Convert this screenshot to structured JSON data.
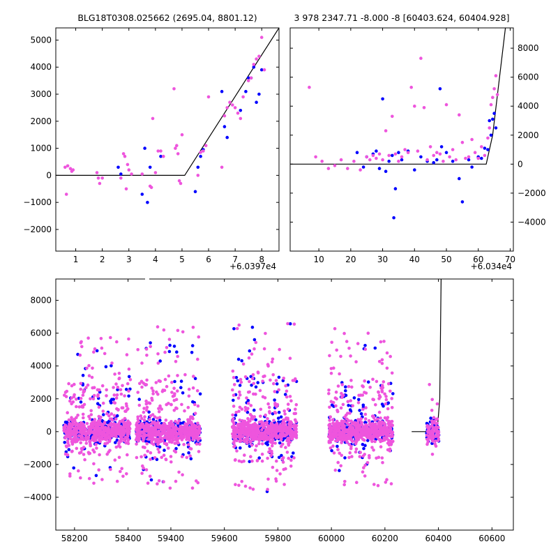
{
  "colors": {
    "blue": "#0000ff",
    "pink": "#ee55dd",
    "model": "#000000"
  },
  "chart_data": [
    {
      "type": "scatter",
      "title": "BLG18T0308.025662 (2695.04, 8801.12)",
      "xlim": [
        0.25,
        8.65
      ],
      "ylim": [
        -2800,
        5450
      ],
      "xticks": [
        1,
        2,
        3,
        4,
        5,
        6,
        7,
        8
      ],
      "xtick_labels": [
        "1",
        "2",
        "3",
        "4",
        "5",
        "6",
        "7",
        "8"
      ],
      "yticks": [
        -2000,
        -1000,
        0,
        1000,
        2000,
        3000,
        4000,
        5000
      ],
      "ytick_labels": [
        "−2000",
        "−1000",
        "0",
        "1000",
        "2000",
        "3000",
        "4000",
        "5000"
      ],
      "yaxis_side": "left",
      "offset_label": "+6.0397e4",
      "model": {
        "x": [
          0.25,
          5.1,
          8.65
        ],
        "y": [
          0,
          0,
          5450
        ]
      },
      "series": [
        {
          "color": "blue",
          "x": [
            2.6,
            2.7,
            3.5,
            3.6,
            3.7,
            3.8,
            4.2,
            5.5,
            5.6,
            5.7,
            5.8,
            6.5,
            6.6,
            6.7,
            7.2,
            7.4,
            7.5,
            7.6,
            7.7,
            7.8,
            7.9,
            8.0
          ],
          "y": [
            300,
            50,
            -700,
            1000,
            -1000,
            300,
            700,
            -600,
            300,
            700,
            950,
            3100,
            1800,
            1400,
            2400,
            3100,
            3600,
            3600,
            4000,
            2700,
            3000,
            3900
          ]
        },
        {
          "color": "pink",
          "x": [
            0.6,
            0.7,
            0.8,
            0.85,
            0.9,
            0.65,
            1.8,
            1.85,
            1.9,
            2.0,
            2.7,
            2.8,
            2.85,
            2.9,
            2.95,
            3.0,
            3.1,
            3.5,
            3.8,
            3.85,
            3.9,
            4.0,
            4.1,
            4.2,
            4.3,
            4.7,
            4.75,
            4.8,
            4.85,
            4.9,
            4.95,
            5.0,
            5.6,
            5.7,
            5.8,
            5.9,
            6.0,
            6.5,
            6.6,
            6.7,
            6.8,
            6.9,
            7.0,
            7.1,
            7.2,
            7.3,
            7.5,
            7.6,
            7.7,
            7.8,
            7.9,
            8.0,
            8.1
          ],
          "y": [
            300,
            350,
            250,
            150,
            200,
            -700,
            100,
            -100,
            -300,
            -100,
            -100,
            800,
            700,
            -500,
            400,
            200,
            50,
            50,
            -400,
            -450,
            2100,
            100,
            900,
            900,
            700,
            3200,
            1000,
            1100,
            800,
            -200,
            -300,
            1500,
            0,
            850,
            900,
            1100,
            2900,
            300,
            2200,
            2500,
            2700,
            2600,
            2500,
            2300,
            2100,
            2900,
            3500,
            3600,
            4100,
            4300,
            4400,
            5100,
            3900
          ]
        }
      ]
    },
    {
      "type": "scatter",
      "title": "3 978 2347.71 -8.000 -8 [60403.624, 60404.928]",
      "xlim": [
        1,
        71
      ],
      "ylim": [
        -6000,
        9400
      ],
      "xticks": [
        10,
        20,
        30,
        40,
        50,
        60,
        70
      ],
      "xtick_labels": [
        "10",
        "20",
        "30",
        "40",
        "50",
        "60",
        "70"
      ],
      "yticks": [
        -4000,
        -2000,
        0,
        2000,
        4000,
        6000,
        8000
      ],
      "ytick_labels": [
        "−4000",
        "−2000",
        "0",
        "2000",
        "4000",
        "6000",
        "8000"
      ],
      "yaxis_side": "right",
      "offset_label": "+6.034e4",
      "model": {
        "x": [
          1,
          62.5,
          64.5,
          68.5
        ],
        "y": [
          0,
          0,
          2000,
          9400
        ]
      },
      "series": [
        {
          "color": "blue",
          "x": [
            22,
            24,
            25,
            27,
            28,
            29,
            30,
            31,
            32,
            33,
            33.5,
            34,
            35,
            36,
            38,
            40,
            42,
            44,
            46,
            47,
            48,
            48.5,
            50,
            52,
            54,
            55,
            57,
            58,
            60,
            61,
            62,
            63,
            63.5,
            64,
            64.5,
            65,
            65.5
          ],
          "y": [
            800,
            -200,
            500,
            700,
            900,
            -300,
            4500,
            -500,
            200,
            600,
            -3700,
            -1700,
            800,
            300,
            900,
            -400,
            500,
            200,
            100,
            300,
            5200,
            1200,
            800,
            200,
            -1000,
            -2600,
            300,
            -200,
            500,
            400,
            1100,
            1000,
            3000,
            2000,
            3100,
            3500,
            2500
          ]
        },
        {
          "color": "pink",
          "x": [
            7,
            9,
            11,
            13,
            15,
            17,
            19,
            21,
            23,
            25,
            26,
            27,
            28,
            29,
            30,
            31,
            32,
            33,
            34,
            35,
            36,
            37,
            38,
            39,
            40,
            41,
            42,
            43,
            44,
            45,
            46,
            47,
            48,
            49,
            50,
            51,
            52,
            53,
            54,
            55,
            56,
            57,
            58,
            59,
            60,
            61,
            62,
            63,
            63.5,
            64,
            64.5,
            65,
            65.5,
            66
          ],
          "y": [
            5300,
            500,
            200,
            -300,
            -100,
            300,
            -300,
            200,
            -400,
            500,
            300,
            600,
            400,
            700,
            300,
            2300,
            600,
            3300,
            700,
            200,
            500,
            1000,
            800,
            5300,
            4000,
            900,
            7300,
            3900,
            300,
            1200,
            600,
            800,
            700,
            200,
            4100,
            500,
            1000,
            300,
            3400,
            1500,
            400,
            500,
            1700,
            800,
            400,
            1200,
            600,
            1800,
            2500,
            4100,
            4600,
            5200,
            6100,
            4800
          ]
        }
      ]
    },
    {
      "type": "scatter",
      "title": "",
      "xlim": [
        58130,
        60680
      ],
      "ylim": [
        -6000,
        9300
      ],
      "xticks": [
        58200,
        58400,
        59400,
        59600,
        59800,
        60000,
        60200,
        60400,
        60600
      ],
      "xtick_labels": [
        "58200",
        "58400",
        "59400",
        "59600",
        "59800",
        "60000",
        "60200",
        "60400",
        "60600"
      ],
      "yticks": [
        -4000,
        -2000,
        0,
        2000,
        4000,
        6000,
        8000
      ],
      "ytick_labels": [
        "−4000",
        "−2000",
        "0",
        "2000",
        "4000",
        "6000",
        "8000"
      ],
      "yaxis_side": "left",
      "x_breaks": [
        58420,
        59260
      ],
      "model": {
        "x": [
          60300,
          60395,
          60405,
          60410
        ],
        "y": [
          0,
          0,
          2000,
          9300
        ]
      },
      "seasons": [
        {
          "start": 58160,
          "end": 58410,
          "scatter": 4300,
          "n_blue": 240,
          "n_pink": 620
        },
        {
          "start": 59270,
          "end": 59510,
          "scatter": 4800,
          "n_blue": 240,
          "n_pink": 640
        },
        {
          "start": 59630,
          "end": 59870,
          "scatter": 5000,
          "n_blue": 260,
          "n_pink": 660
        },
        {
          "start": 59990,
          "end": 60230,
          "scatter": 4600,
          "n_blue": 240,
          "n_pink": 640
        },
        {
          "start": 60355,
          "end": 60402,
          "scatter": 2600,
          "n_blue": 50,
          "n_pink": 90
        }
      ]
    }
  ]
}
